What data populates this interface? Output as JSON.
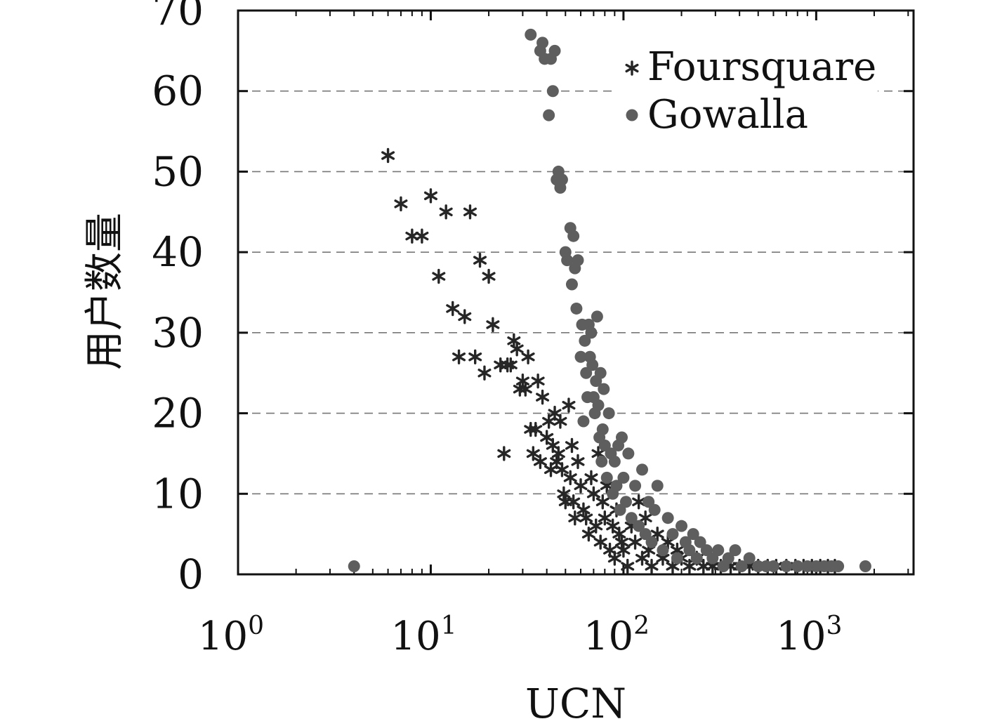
{
  "chart_data": {
    "type": "scatter",
    "title": "",
    "xlabel": "UCN",
    "ylabel": "用户数量",
    "x_scale": "log",
    "xlim": [
      1,
      3200
    ],
    "ylim": [
      0,
      70
    ],
    "x_ticks": [
      {
        "value": 1,
        "base": "10",
        "exp": "0"
      },
      {
        "value": 10,
        "base": "10",
        "exp": "1"
      },
      {
        "value": 100,
        "base": "10",
        "exp": "2"
      },
      {
        "value": 1000,
        "base": "10",
        "exp": "3"
      }
    ],
    "y_ticks": [
      0,
      10,
      20,
      30,
      40,
      50,
      60,
      70
    ],
    "grid": "horizontal dashed",
    "legend_position": "top-right",
    "series": [
      {
        "name": "Foursquare",
        "marker": "asterisk",
        "color": "#262626",
        "points": [
          [
            6,
            52
          ],
          [
            7,
            46
          ],
          [
            8,
            42
          ],
          [
            9,
            42
          ],
          [
            10,
            47
          ],
          [
            11,
            37
          ],
          [
            12,
            45
          ],
          [
            13,
            33
          ],
          [
            14,
            27
          ],
          [
            15,
            32
          ],
          [
            16,
            45
          ],
          [
            17,
            27
          ],
          [
            18,
            39
          ],
          [
            19,
            25
          ],
          [
            20,
            37
          ],
          [
            21,
            31
          ],
          [
            23,
            26
          ],
          [
            24,
            15
          ],
          [
            25,
            26
          ],
          [
            26,
            26
          ],
          [
            27,
            29
          ],
          [
            28,
            28
          ],
          [
            29,
            23
          ],
          [
            30,
            24
          ],
          [
            31,
            23
          ],
          [
            32,
            27
          ],
          [
            33,
            18
          ],
          [
            34,
            15
          ],
          [
            35,
            18
          ],
          [
            36,
            24
          ],
          [
            37,
            14
          ],
          [
            38,
            22
          ],
          [
            40,
            17
          ],
          [
            41,
            19
          ],
          [
            42,
            13
          ],
          [
            43,
            16
          ],
          [
            44,
            20
          ],
          [
            45,
            14
          ],
          [
            46,
            15
          ],
          [
            47,
            19
          ],
          [
            48,
            13
          ],
          [
            49,
            10
          ],
          [
            50,
            9
          ],
          [
            52,
            21
          ],
          [
            53,
            12
          ],
          [
            54,
            16
          ],
          [
            55,
            9
          ],
          [
            56,
            7
          ],
          [
            58,
            14
          ],
          [
            60,
            11
          ],
          [
            62,
            8
          ],
          [
            64,
            7
          ],
          [
            66,
            5
          ],
          [
            68,
            12
          ],
          [
            70,
            10
          ],
          [
            72,
            6
          ],
          [
            74,
            15
          ],
          [
            76,
            4
          ],
          [
            78,
            9
          ],
          [
            80,
            7
          ],
          [
            82,
            11
          ],
          [
            85,
            3
          ],
          [
            88,
            6
          ],
          [
            90,
            2
          ],
          [
            92,
            8
          ],
          [
            95,
            5
          ],
          [
            98,
            4
          ],
          [
            100,
            3
          ],
          [
            105,
            1
          ],
          [
            110,
            6
          ],
          [
            115,
            4
          ],
          [
            120,
            9
          ],
          [
            125,
            2
          ],
          [
            130,
            7
          ],
          [
            135,
            3
          ],
          [
            140,
            1
          ],
          [
            150,
            5
          ],
          [
            160,
            2
          ],
          [
            170,
            4
          ],
          [
            180,
            1
          ],
          [
            190,
            3
          ],
          [
            200,
            2
          ],
          [
            220,
            1
          ],
          [
            240,
            2
          ],
          [
            260,
            1
          ],
          [
            290,
            1
          ],
          [
            320,
            1
          ],
          [
            360,
            1
          ],
          [
            400,
            1
          ],
          [
            450,
            1
          ],
          [
            500,
            1
          ],
          [
            560,
            1
          ],
          [
            620,
            1
          ],
          [
            700,
            1
          ],
          [
            780,
            1
          ],
          [
            860,
            1
          ],
          [
            950,
            1
          ],
          [
            1050,
            1
          ],
          [
            1150,
            1
          ],
          [
            1250,
            1
          ]
        ]
      },
      {
        "name": "Gowalla",
        "marker": "circle",
        "color": "#5e5e5e",
        "points": [
          [
            4,
            1
          ],
          [
            33,
            67
          ],
          [
            37,
            65
          ],
          [
            38,
            66
          ],
          [
            39,
            64
          ],
          [
            42,
            64
          ],
          [
            44,
            65
          ],
          [
            43,
            60
          ],
          [
            41,
            57
          ],
          [
            45,
            49
          ],
          [
            46,
            50
          ],
          [
            47,
            48
          ],
          [
            48,
            49
          ],
          [
            50,
            40
          ],
          [
            51,
            39
          ],
          [
            53,
            43
          ],
          [
            54,
            36
          ],
          [
            55,
            42
          ],
          [
            56,
            38
          ],
          [
            57,
            33
          ],
          [
            58,
            39
          ],
          [
            60,
            27
          ],
          [
            61,
            31
          ],
          [
            62,
            19
          ],
          [
            63,
            29
          ],
          [
            64,
            25
          ],
          [
            65,
            22
          ],
          [
            66,
            31
          ],
          [
            67,
            27
          ],
          [
            68,
            30
          ],
          [
            69,
            26
          ],
          [
            70,
            22
          ],
          [
            71,
            20
          ],
          [
            72,
            24
          ],
          [
            73,
            32
          ],
          [
            74,
            21
          ],
          [
            75,
            17
          ],
          [
            76,
            25
          ],
          [
            77,
            14
          ],
          [
            78,
            18
          ],
          [
            79,
            23
          ],
          [
            80,
            16
          ],
          [
            82,
            12
          ],
          [
            84,
            20
          ],
          [
            86,
            15
          ],
          [
            88,
            10
          ],
          [
            90,
            14
          ],
          [
            92,
            11
          ],
          [
            94,
            16
          ],
          [
            96,
            8
          ],
          [
            98,
            17
          ],
          [
            100,
            12
          ],
          [
            103,
            9
          ],
          [
            106,
            15
          ],
          [
            110,
            7
          ],
          [
            115,
            11
          ],
          [
            120,
            6
          ],
          [
            125,
            13
          ],
          [
            130,
            5
          ],
          [
            135,
            9
          ],
          [
            140,
            4
          ],
          [
            145,
            8
          ],
          [
            150,
            11
          ],
          [
            160,
            3
          ],
          [
            170,
            7
          ],
          [
            180,
            5
          ],
          [
            190,
            2
          ],
          [
            200,
            6
          ],
          [
            210,
            4
          ],
          [
            220,
            3
          ],
          [
            230,
            5
          ],
          [
            240,
            2
          ],
          [
            250,
            4
          ],
          [
            270,
            3
          ],
          [
            290,
            2
          ],
          [
            310,
            3
          ],
          [
            330,
            1
          ],
          [
            350,
            2
          ],
          [
            380,
            3
          ],
          [
            410,
            1
          ],
          [
            450,
            2
          ],
          [
            500,
            1
          ],
          [
            550,
            1
          ],
          [
            600,
            1
          ],
          [
            700,
            1
          ],
          [
            800,
            1
          ],
          [
            900,
            1
          ],
          [
            1000,
            1
          ],
          [
            1100,
            1
          ],
          [
            1200,
            1
          ],
          [
            1300,
            1
          ],
          [
            1800,
            1
          ]
        ]
      }
    ]
  }
}
